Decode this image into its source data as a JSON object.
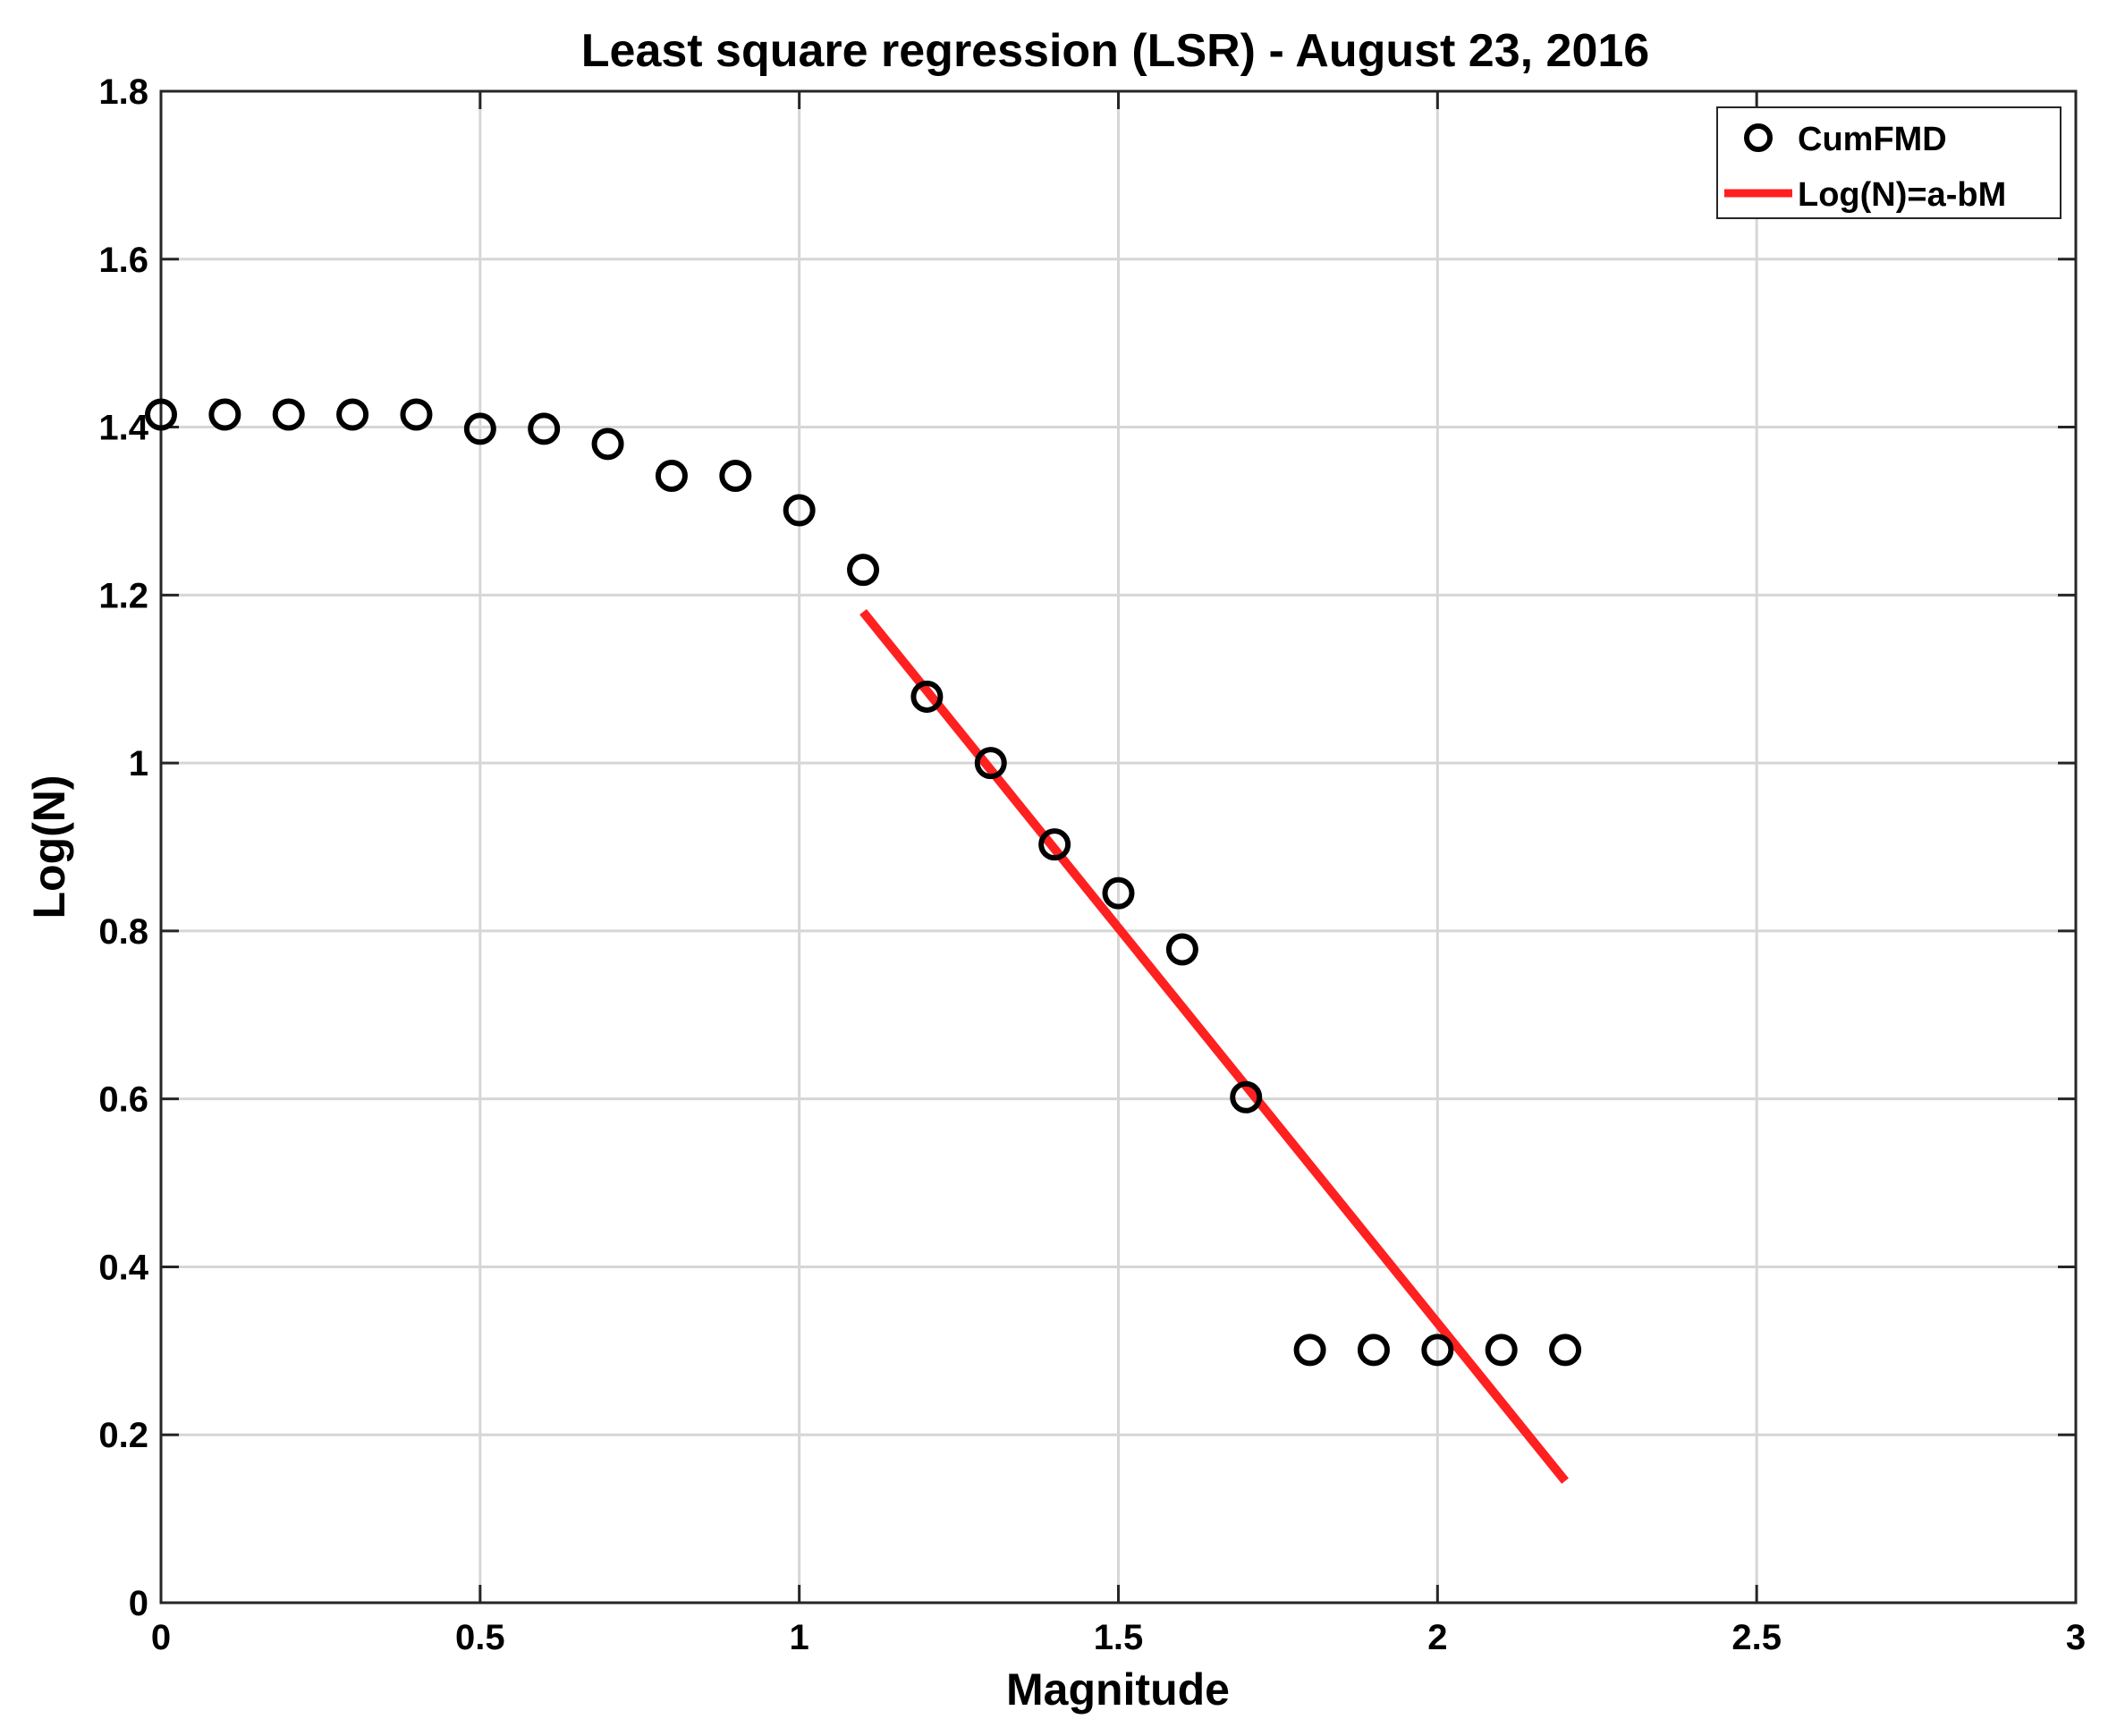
{
  "chart_data": {
    "type": "scatter",
    "title": "Least square regression (LSR) - August 23, 2016",
    "xlabel": "Magnitude",
    "ylabel": "Log(N)",
    "xlim": [
      0,
      3
    ],
    "ylim": [
      0,
      1.8
    ],
    "x_ticks": [
      "0",
      "0.5",
      "1",
      "1.5",
      "2",
      "2.5",
      "3"
    ],
    "y_ticks": [
      "0",
      "0.2",
      "0.4",
      "0.6",
      "0.8",
      "1",
      "1.2",
      "1.4",
      "1.6",
      "1.8"
    ],
    "grid": true,
    "legend_position": "top-right",
    "series": [
      {
        "name": "CumFMD",
        "type": "scatter",
        "marker": "open-circle",
        "color": "#000000",
        "x": [
          0,
          0.1,
          0.2,
          0.3,
          0.4,
          0.5,
          0.6,
          0.7,
          0.8,
          0.9,
          1.0,
          1.1,
          1.2,
          1.3,
          1.4,
          1.5,
          1.6,
          1.7,
          1.8,
          1.9,
          2.0,
          2.1,
          2.2
        ],
        "y": [
          1.415,
          1.415,
          1.415,
          1.415,
          1.415,
          1.398,
          1.398,
          1.38,
          1.342,
          1.342,
          1.301,
          1.23,
          1.079,
          1.0,
          0.903,
          0.845,
          0.778,
          0.602,
          0.301,
          0.301,
          0.301,
          0.301,
          0.301
        ]
      },
      {
        "name": "Log(N)=a-bM",
        "type": "line",
        "color": "#ff2020",
        "x": [
          1.1,
          2.2
        ],
        "y": [
          1.18,
          0.145
        ]
      }
    ]
  }
}
